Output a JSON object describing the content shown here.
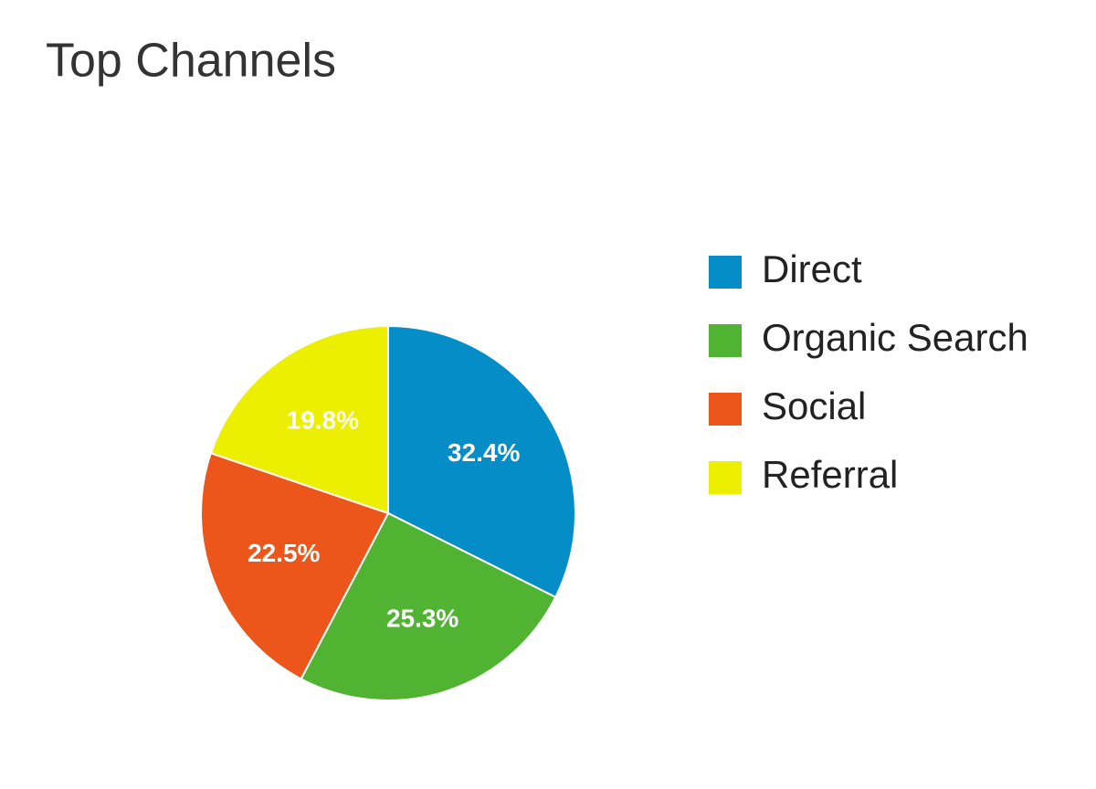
{
  "chart_data": {
    "type": "pie",
    "title": "Top Channels",
    "categories": [
      "Direct",
      "Organic Search",
      "Social",
      "Referral"
    ],
    "values": [
      32.4,
      25.3,
      22.5,
      19.8
    ],
    "value_labels": [
      "32.4%",
      "25.3%",
      "22.5%",
      "19.8%"
    ],
    "colors": [
      "#058dc7",
      "#50b432",
      "#ed561b",
      "#edef00"
    ],
    "legend": "right"
  }
}
